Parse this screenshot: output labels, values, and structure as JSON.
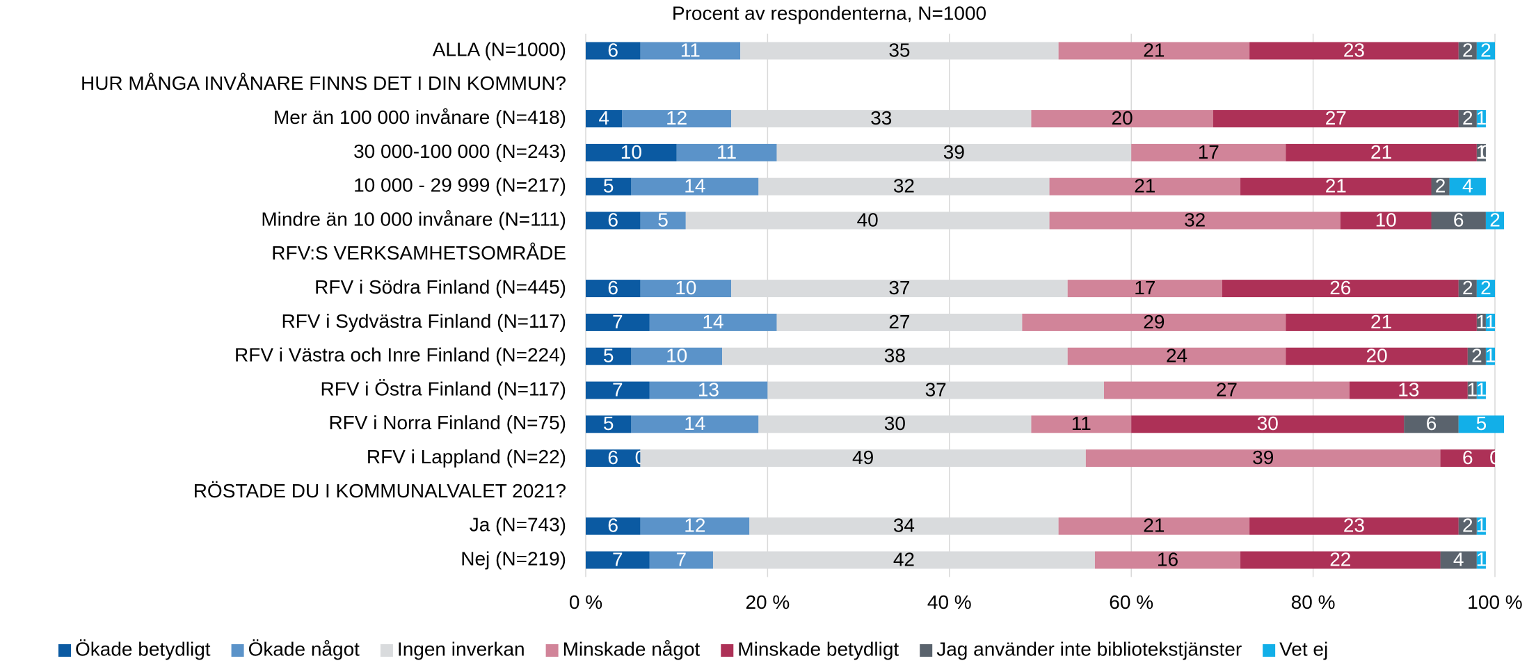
{
  "chart_data": {
    "type": "stacked_bar_horizontal",
    "title": "Procent av respondenterna, N=1000",
    "categories": [
      "ALLA (N=1000)",
      "HUR MÅNGA INVÅNARE FINNS DET I DIN KOMMUN?",
      "Mer än 100 000 invånare (N=418)",
      "30 000-100 000 (N=243)",
      "10 000 - 29 999 (N=217)",
      "Mindre än 10 000 invånare (N=111)",
      "RFV:S VERKSAMHETSOMRÅDE",
      "RFV i Södra Finland (N=445)",
      "RFV i Sydvästra Finland (N=117)",
      "RFV i Västra och Inre Finland (N=224)",
      "RFV i Östra Finland (N=117)",
      "RFV i Norra Finland (N=75)",
      "RFV i Lappland (N=22)",
      "RÖSTADE DU I KOMMUNALVALET 2021?",
      "Ja (N=743)",
      "Nej (N=219)"
    ],
    "series": [
      {
        "name": "Ökade betydligt",
        "color": "#0b5aa2",
        "values": [
          6,
          null,
          4,
          10,
          5,
          6,
          null,
          6,
          7,
          5,
          7,
          5,
          6,
          null,
          6,
          7
        ]
      },
      {
        "name": "Ökade något",
        "color": "#5b93c9",
        "values": [
          11,
          null,
          12,
          11,
          14,
          5,
          null,
          10,
          14,
          10,
          13,
          14,
          0,
          null,
          12,
          7
        ]
      },
      {
        "name": "Ingen inverkan",
        "color": "#d9dbdd",
        "values": [
          35,
          null,
          33,
          39,
          32,
          40,
          null,
          37,
          27,
          38,
          37,
          30,
          49,
          null,
          34,
          42
        ]
      },
      {
        "name": "Minskade något",
        "color": "#d18499",
        "values": [
          21,
          null,
          20,
          17,
          21,
          32,
          null,
          17,
          29,
          24,
          27,
          11,
          39,
          null,
          21,
          16
        ]
      },
      {
        "name": "Minskade betydligt",
        "color": "#ad3157",
        "values": [
          23,
          null,
          27,
          21,
          21,
          10,
          null,
          26,
          21,
          20,
          13,
          30,
          6,
          null,
          23,
          22
        ]
      },
      {
        "name": "Jag använder inte bibliotekstjänster",
        "color": "#5a636d",
        "values": [
          2,
          null,
          2,
          1,
          2,
          6,
          null,
          2,
          1,
          2,
          1,
          6,
          0,
          null,
          2,
          4
        ]
      },
      {
        "name": "Vet ej",
        "color": "#12afe8",
        "values": [
          2,
          null,
          1,
          0,
          4,
          2,
          null,
          2,
          1,
          1,
          1,
          5,
          0,
          null,
          1,
          1
        ]
      }
    ],
    "xlim": [
      0,
      100
    ],
    "xticks": [
      {
        "value": 0,
        "label": "0 %"
      },
      {
        "value": 20,
        "label": "20 %"
      },
      {
        "value": 40,
        "label": "40 %"
      },
      {
        "value": 60,
        "label": "60 %"
      },
      {
        "value": 80,
        "label": "80 %"
      },
      {
        "value": 100,
        "label": "100 %"
      }
    ],
    "grid": true,
    "legend": "bottom"
  }
}
